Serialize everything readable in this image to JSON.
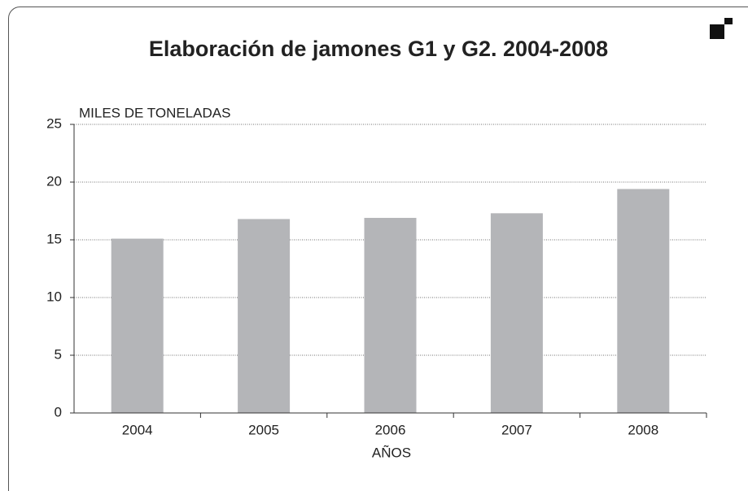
{
  "chart_data": {
    "type": "bar",
    "title": "Elaboración de jamones G1 y G2.  2004-2008",
    "y_label": "MILES DE TONELADAS",
    "x_label": "AÑOS",
    "categories": [
      "2004",
      "2005",
      "2006",
      "2007",
      "2008"
    ],
    "values": [
      15.1,
      16.8,
      16.9,
      17.3,
      19.4
    ],
    "color": "#b4b5b8",
    "ylim": [
      0,
      25
    ],
    "yticks": [
      0,
      5,
      10,
      15,
      20,
      25
    ],
    "grid": true
  }
}
